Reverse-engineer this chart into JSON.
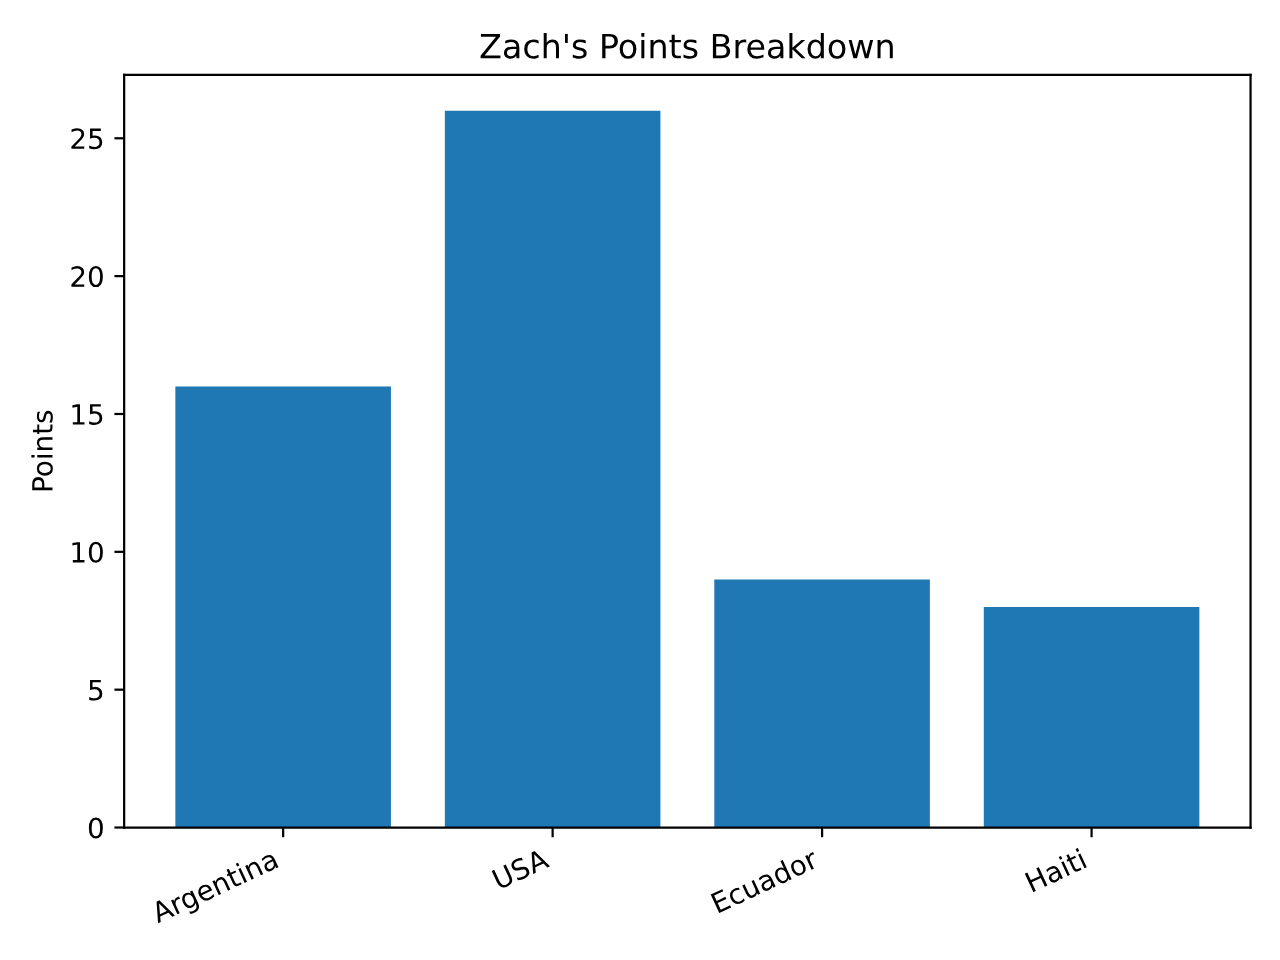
{
  "chart_data": {
    "type": "bar",
    "title": "Zach's Points Breakdown",
    "ylabel": "Points",
    "categories": [
      "Argentina",
      "USA",
      "Ecuador",
      "Haiti"
    ],
    "values": [
      16,
      26,
      9,
      8
    ],
    "color": "#1f77b4",
    "ylim": [
      0,
      27.3
    ],
    "yticks": [
      0,
      5,
      10,
      15,
      20,
      25
    ],
    "grid": false,
    "legend": false
  }
}
